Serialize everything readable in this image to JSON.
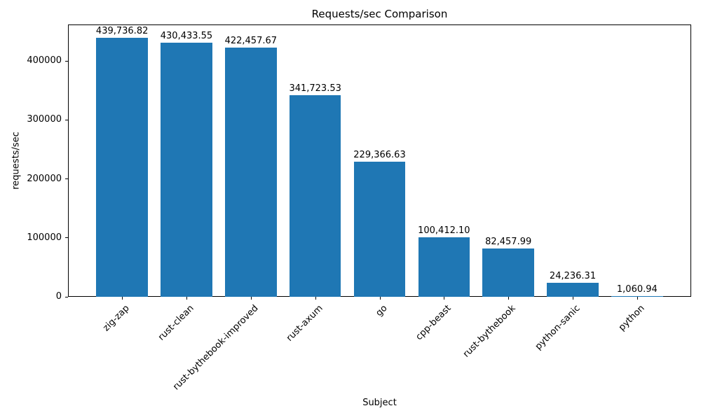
{
  "chart_data": {
    "type": "bar",
    "title": "Requests/sec Comparison",
    "xlabel": "Subject",
    "ylabel": "requests/sec",
    "categories": [
      "zig-zap",
      "rust-clean",
      "rust-bythebook-improved",
      "rust-axum",
      "go",
      "cpp-beast",
      "rust-bythebook",
      "python-sanic",
      "python"
    ],
    "values": [
      439736.82,
      430433.55,
      422457.67,
      341723.53,
      229366.63,
      100412.1,
      82457.99,
      24236.31,
      1060.94
    ],
    "bar_labels": [
      "439,736.82",
      "430,433.55",
      "422,457.67",
      "341,723.53",
      "229,366.63",
      "100,412.10",
      "82,457.99",
      "24,236.31",
      "1,060.94"
    ],
    "yticks": [
      0,
      100000,
      200000,
      300000,
      400000
    ],
    "ytick_labels": [
      "0",
      "100000",
      "200000",
      "300000",
      "400000"
    ],
    "ylim": [
      0,
      461723.66
    ],
    "bar_color": "#1f77b4",
    "grid": false,
    "legend": null,
    "x_tick_rotation": 45
  }
}
